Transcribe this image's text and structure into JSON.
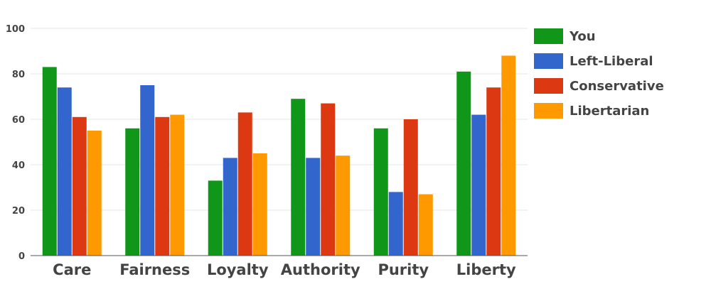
{
  "chart_data": {
    "type": "bar",
    "categories": [
      "Care",
      "Fairness",
      "Loyalty",
      "Authority",
      "Purity",
      "Liberty"
    ],
    "series": [
      {
        "name": "You",
        "color": "#109618",
        "values": [
          83,
          56,
          33,
          69,
          56,
          81
        ]
      },
      {
        "name": "Left-Liberal",
        "color": "#3366cc",
        "values": [
          74,
          75,
          43,
          43,
          28,
          62
        ]
      },
      {
        "name": "Conservative",
        "color": "#dc3912",
        "values": [
          61,
          61,
          63,
          67,
          60,
          74
        ]
      },
      {
        "name": "Libertarian",
        "color": "#ff9900",
        "values": [
          55,
          62,
          45,
          44,
          27,
          88
        ]
      }
    ],
    "yticks": [
      "0",
      "20",
      "40",
      "60",
      "80",
      "100"
    ],
    "ylim": [
      0,
      100
    ],
    "title": "",
    "xlabel": "",
    "ylabel": "",
    "grid": true,
    "legend_position": "right"
  }
}
